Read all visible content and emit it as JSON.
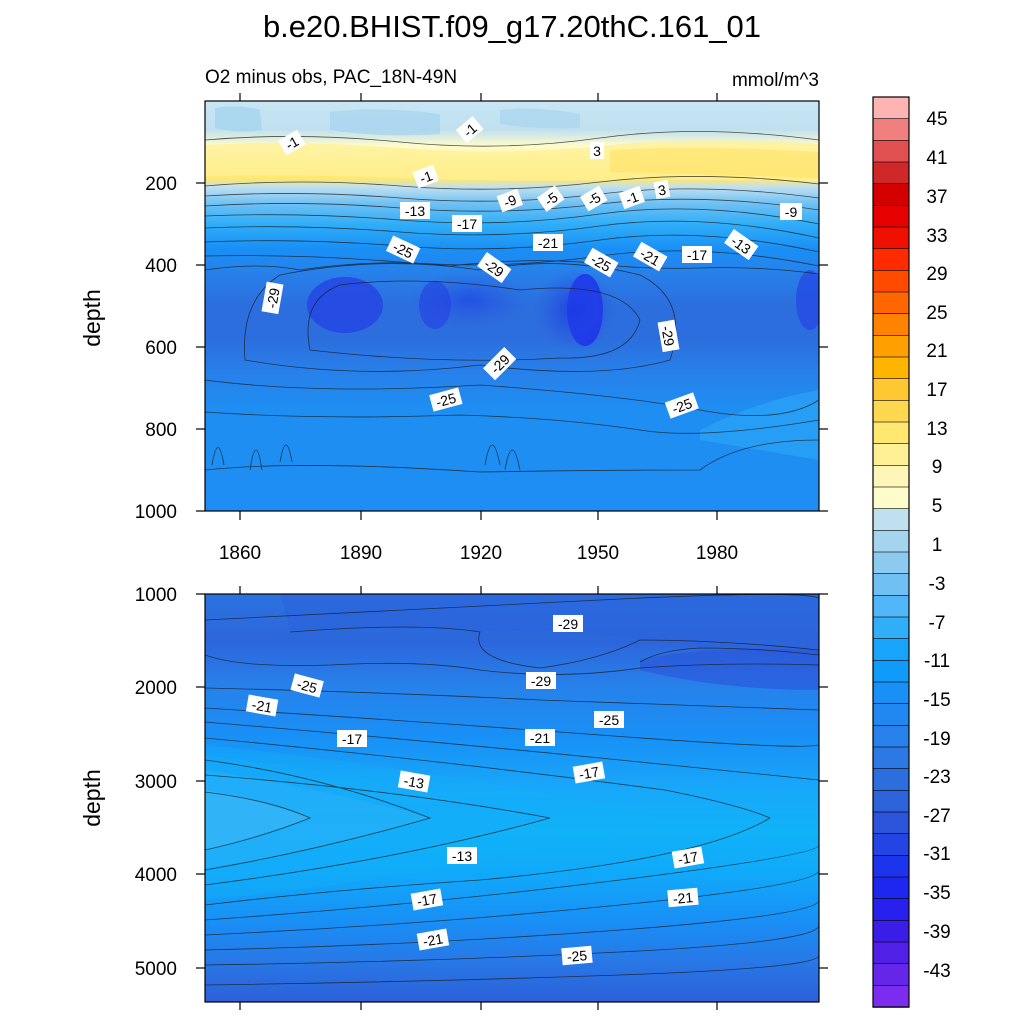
{
  "chart_data": {
    "type": "heatmap",
    "title": "b.e20.BHIST.f09_g17.20thC.161_01",
    "subtitle_left": "O2 minus obs, PAC_18N-49N",
    "units": "mmol/m^3",
    "colorbar": {
      "labels": [
        "45",
        "41",
        "37",
        "33",
        "29",
        "25",
        "21",
        "17",
        "13",
        "9",
        "5",
        "1",
        "-3",
        "-7",
        "-11",
        "-15",
        "-19",
        "-23",
        "-27",
        "-31",
        "-35",
        "-39",
        "-43"
      ],
      "colors": [
        "#ffb4b4",
        "#f08080",
        "#e05050",
        "#d02828",
        "#d40000",
        "#e60000",
        "#f01000",
        "#ff2a00",
        "#ff4a00",
        "#ff6600",
        "#ff8200",
        "#ffa000",
        "#ffb400",
        "#ffc832",
        "#ffd850",
        "#ffe870",
        "#fff096",
        "#fff5b8",
        "#fffccc",
        "#c0e0f0",
        "#a4d4ee",
        "#8ccaf0",
        "#70c0f4",
        "#50b6f8",
        "#30aef8",
        "#18a4fa",
        "#109afa",
        "#1890f6",
        "#2088f0",
        "#2880ea",
        "#2c78e4",
        "#2c6ede",
        "#2c62da",
        "#2c54da",
        "#2444e4",
        "#1c34ec",
        "#1c28f0",
        "#2820ec",
        "#3a1ee8",
        "#5020e8",
        "#6626ea",
        "#7c2cee"
      ]
    },
    "x_ticks": [
      "1860",
      "1890",
      "1920",
      "1950",
      "1980"
    ],
    "upper": {
      "ylabel": "depth",
      "y_ticks": [
        "200",
        "400",
        "600",
        "800",
        "1000"
      ],
      "contour_labels": [
        "-1",
        "-1",
        "-1",
        "3",
        "3",
        "-5",
        "-5",
        "-1",
        "-9",
        "-9",
        "-13",
        "-13",
        "-17",
        "-17",
        "-21",
        "-21",
        "-25",
        "-25",
        "-29",
        "-29",
        "-29",
        "-29",
        "-25",
        "-25"
      ]
    },
    "lower": {
      "ylabel": "depth",
      "y_ticks": [
        "1000",
        "2000",
        "3000",
        "4000",
        "5000"
      ],
      "contour_labels": [
        "-29",
        "-29",
        "-25",
        "-25",
        "-21",
        "-21",
        "-17",
        "-17",
        "-13",
        "-13",
        "-17",
        "-17",
        "-21",
        "-21",
        "-25"
      ]
    }
  }
}
